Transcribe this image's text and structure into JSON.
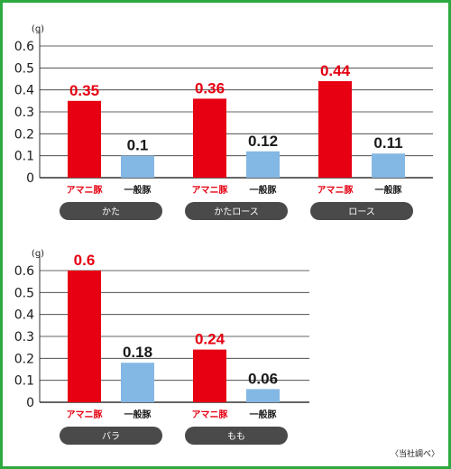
{
  "colors": {
    "frame": "#2daa3f",
    "amani": "#e60012",
    "ippan": "#84b8e4",
    "pill": "#4a4a4a",
    "grid": "#333333",
    "text": "#1a1a1a",
    "pill_text": "#ffffff"
  },
  "chart_data": [
    {
      "type": "bar",
      "unit_label": "(g)",
      "ylim": [
        0,
        0.6
      ],
      "y_ticks": [
        "0",
        "0.1",
        "0.2",
        "0.3",
        "0.4",
        "0.5",
        "0.6"
      ],
      "grid": true,
      "groups": [
        {
          "name": "かた",
          "bars": [
            {
              "label": "アマニ豚",
              "value": 0.35,
              "value_text": "0.35"
            },
            {
              "label": "一般豚",
              "value": 0.1,
              "value_text": "0.1"
            }
          ]
        },
        {
          "name": "かたロース",
          "bars": [
            {
              "label": "アマニ豚",
              "value": 0.36,
              "value_text": "0.36"
            },
            {
              "label": "一般豚",
              "value": 0.12,
              "value_text": "0.12"
            }
          ]
        },
        {
          "name": "ロース",
          "bars": [
            {
              "label": "アマニ豚",
              "value": 0.44,
              "value_text": "0.44"
            },
            {
              "label": "一般豚",
              "value": 0.11,
              "value_text": "0.11"
            }
          ]
        }
      ]
    },
    {
      "type": "bar",
      "unit_label": "(g)",
      "ylim": [
        0,
        0.6
      ],
      "y_ticks": [
        "0",
        "0.1",
        "0.2",
        "0.3",
        "0.4",
        "0.5",
        "0.6"
      ],
      "grid": true,
      "groups": [
        {
          "name": "バラ",
          "bars": [
            {
              "label": "アマニ豚",
              "value": 0.6,
              "value_text": "0.6"
            },
            {
              "label": "一般豚",
              "value": 0.18,
              "value_text": "0.18"
            }
          ]
        },
        {
          "name": "もも",
          "bars": [
            {
              "label": "アマニ豚",
              "value": 0.24,
              "value_text": "0.24"
            },
            {
              "label": "一般豚",
              "value": 0.06,
              "value_text": "0.06"
            }
          ]
        }
      ]
    }
  ],
  "source_note": "〈当社調べ〉"
}
